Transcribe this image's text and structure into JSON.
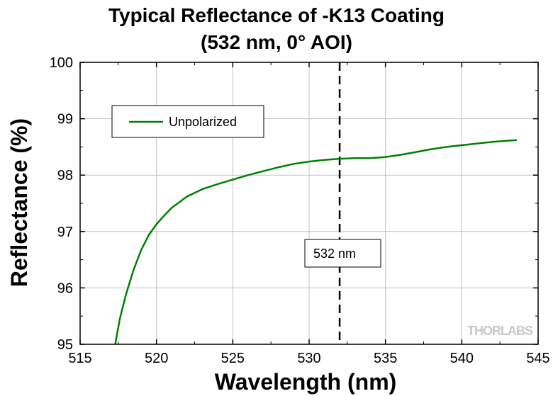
{
  "chart_data": {
    "type": "line",
    "title_line1": "Typical Reflectance of -K13 Coating",
    "title_line2": "(532 nm, 0° AOI)",
    "xlabel": "Wavelength (nm)",
    "ylabel": "Reflectance (%)",
    "xlim": [
      515,
      545
    ],
    "ylim": [
      95,
      100
    ],
    "xticks": [
      515,
      520,
      525,
      530,
      535,
      540,
      545
    ],
    "yticks": [
      95,
      96,
      97,
      98,
      99,
      100
    ],
    "grid": true,
    "legend_position": "top-left",
    "series": [
      {
        "name": "Unpolarized",
        "color": "#008000",
        "x": [
          517.3,
          517.6,
          518.0,
          518.5,
          519.0,
          519.5,
          520.0,
          520.5,
          521.0,
          522.0,
          523.0,
          524.0,
          525.0,
          526.0,
          527.0,
          528.0,
          529.0,
          530.0,
          531.0,
          532.0,
          533.0,
          534.0,
          535.0,
          536.0,
          537.0,
          538.0,
          539.0,
          540.0,
          541.0,
          542.0,
          543.0,
          543.6
        ],
        "y": [
          95.0,
          95.45,
          95.88,
          96.32,
          96.67,
          96.94,
          97.13,
          97.28,
          97.42,
          97.62,
          97.75,
          97.84,
          97.92,
          98.0,
          98.07,
          98.14,
          98.2,
          98.24,
          98.27,
          98.29,
          98.3,
          98.3,
          98.32,
          98.36,
          98.41,
          98.46,
          98.5,
          98.53,
          98.56,
          98.59,
          98.61,
          98.62
        ]
      }
    ],
    "annotation": {
      "label": "532 nm",
      "x": 532
    },
    "watermark": "THORLABS"
  }
}
